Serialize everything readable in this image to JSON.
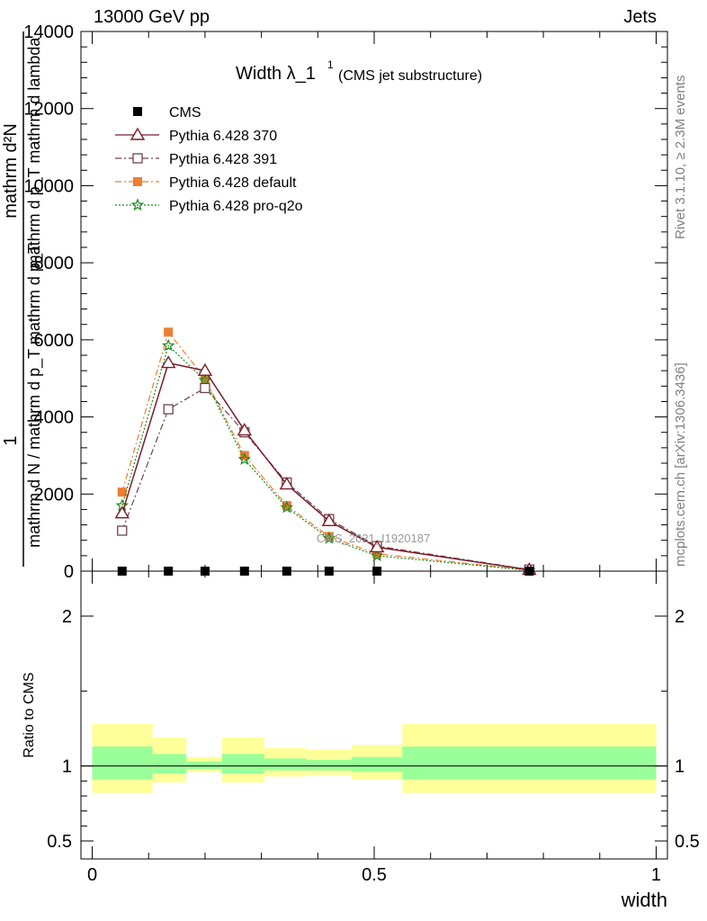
{
  "header": {
    "left": "13000 GeV pp",
    "right": "Jets"
  },
  "side_labels": {
    "rivet": "Rivet 3.1.10, ≥ 2.3M events",
    "mcplots": "mcplots.cern.ch [arXiv:1306.3436]"
  },
  "watermark": "CMS_2021_I1920187",
  "chart_data": [
    {
      "type": "line",
      "title": "Width λ_1",
      "title_sup": "1",
      "subtitle": "(CMS jet substructure)",
      "xlabel": "",
      "ylabel_parts": [
        "1",
        "mathrm d N / mathrm d p_T mathrm d p_T",
        "mathrm d²N",
        "mathrm d p_T mathrm d lambda"
      ],
      "xlim": [
        -0.02,
        1.02
      ],
      "ylim": [
        0,
        14000
      ],
      "yticks": [
        0,
        2000,
        4000,
        6000,
        8000,
        10000,
        12000,
        14000
      ],
      "yticklabels": [
        "0",
        "2000",
        "4000",
        "6000",
        "8000",
        "10000",
        "12000",
        "14000"
      ],
      "x": [
        0.053,
        0.135,
        0.2,
        0.27,
        0.345,
        0.42,
        0.505,
        0.775
      ],
      "series": [
        {
          "name": "CMS",
          "color": "#000000",
          "marker": "square-filled",
          "dash": "none",
          "values": [
            0,
            0,
            0,
            0,
            0,
            0,
            0,
            0
          ]
        },
        {
          "name": "Pythia 6.428 370",
          "color": "#7b1c2a",
          "marker": "triangle-open",
          "dash": "solid",
          "values": [
            1500,
            5400,
            5200,
            3650,
            2250,
            1300,
            620,
            35
          ]
        },
        {
          "name": "Pythia 6.428 391",
          "color": "#70424e",
          "marker": "square-open",
          "dash": "dashdot",
          "values": [
            1050,
            4200,
            4750,
            3600,
            2300,
            1350,
            650,
            40
          ]
        },
        {
          "name": "Pythia 6.428 default",
          "color": "#ee7d33",
          "marker": "square-filled",
          "dash": "dashdot",
          "values": [
            2050,
            6200,
            5000,
            3000,
            1700,
            900,
            450,
            25
          ]
        },
        {
          "name": "Pythia 6.428 pro-q2o",
          "color": "#1a8a1a",
          "marker": "star",
          "dash": "dotted",
          "values": [
            1700,
            5850,
            4950,
            2900,
            1650,
            850,
            400,
            20
          ]
        }
      ],
      "grid": false,
      "legend_position": "top-left"
    },
    {
      "type": "area",
      "xlabel": "width",
      "ylabel": "Ratio to CMS",
      "ylim": [
        0.38,
        2.3
      ],
      "ytick_labels": [
        "0.5",
        "1",
        "2"
      ],
      "xticklabels": [
        "0",
        "0.5",
        "1"
      ],
      "bins": [
        {
          "lo": 0.0,
          "hi": 0.107,
          "inner": [
            0.91,
            1.13
          ],
          "outer": [
            0.82,
            1.28
          ]
        },
        {
          "lo": 0.107,
          "hi": 0.167,
          "inner": [
            0.95,
            1.08
          ],
          "outer": [
            0.89,
            1.19
          ]
        },
        {
          "lo": 0.167,
          "hi": 0.23,
          "inner": [
            0.98,
            1.03
          ],
          "outer": [
            0.96,
            1.06
          ]
        },
        {
          "lo": 0.23,
          "hi": 0.305,
          "inner": [
            0.95,
            1.08
          ],
          "outer": [
            0.89,
            1.19
          ]
        },
        {
          "lo": 0.305,
          "hi": 0.38,
          "inner": [
            0.97,
            1.05
          ],
          "outer": [
            0.93,
            1.12
          ]
        },
        {
          "lo": 0.38,
          "hi": 0.46,
          "inner": [
            0.97,
            1.04
          ],
          "outer": [
            0.94,
            1.11
          ]
        },
        {
          "lo": 0.46,
          "hi": 0.55,
          "inner": [
            0.96,
            1.06
          ],
          "outer": [
            0.91,
            1.14
          ]
        },
        {
          "lo": 0.55,
          "hi": 1.0,
          "inner": [
            0.91,
            1.13
          ],
          "outer": [
            0.82,
            1.28
          ]
        }
      ],
      "inner_color": "#99ff99",
      "outer_color": "#ffff99",
      "reference": 1
    }
  ]
}
